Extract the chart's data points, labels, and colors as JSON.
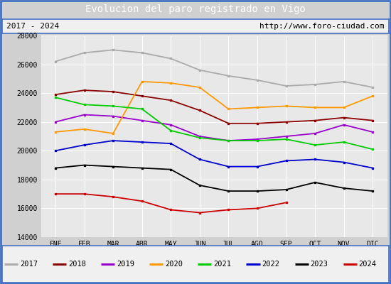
{
  "title": "Evolucion del paro registrado en Vigo",
  "subtitle_left": "2017 - 2024",
  "subtitle_right": "http://www.foro-ciudad.com",
  "months": [
    "ENE",
    "FEB",
    "MAR",
    "ABR",
    "MAY",
    "JUN",
    "JUL",
    "AGO",
    "SEP",
    "OCT",
    "NOV",
    "DIC"
  ],
  "ylim": [
    14000,
    28000
  ],
  "yticks": [
    14000,
    16000,
    18000,
    20000,
    22000,
    24000,
    26000,
    28000
  ],
  "series": {
    "2017": {
      "color": "#aaaaaa",
      "data": [
        26200,
        26800,
        27000,
        26800,
        26400,
        25600,
        25200,
        24900,
        24500,
        24600,
        24800,
        24400
      ]
    },
    "2018": {
      "color": "#8b0000",
      "data": [
        23900,
        24200,
        24100,
        23800,
        23500,
        22800,
        21900,
        21900,
        22000,
        22100,
        22300,
        22100
      ]
    },
    "2019": {
      "color": "#9900cc",
      "data": [
        22000,
        22500,
        22400,
        22100,
        21800,
        21000,
        20700,
        20800,
        21000,
        21200,
        21800,
        21300
      ]
    },
    "2020": {
      "color": "#ff9900",
      "data": [
        21300,
        21500,
        21200,
        24800,
        24700,
        24400,
        22900,
        23000,
        23100,
        23000,
        23000,
        23800
      ]
    },
    "2021": {
      "color": "#00cc00",
      "data": [
        23700,
        23200,
        23100,
        22900,
        21400,
        20900,
        20700,
        20700,
        20800,
        20400,
        20600,
        20100
      ]
    },
    "2022": {
      "color": "#0000cc",
      "data": [
        20000,
        20400,
        20700,
        20600,
        20500,
        19400,
        18900,
        18900,
        19300,
        19400,
        19200,
        18800
      ]
    },
    "2023": {
      "color": "#000000",
      "data": [
        18800,
        19000,
        18900,
        18800,
        18700,
        17600,
        17200,
        17200,
        17300,
        17800,
        17400,
        17200
      ]
    },
    "2024": {
      "color": "#cc0000",
      "data": [
        17000,
        17000,
        16800,
        16500,
        15900,
        15700,
        15900,
        16000,
        16400,
        null,
        null,
        null
      ]
    }
  },
  "title_bg_color": "#4472c4",
  "title_fg_color": "#ffffff",
  "plot_bg_color": "#e8e8e8",
  "grid_color": "#ffffff",
  "border_color": "#4472c4",
  "fig_bg_color": "#d0d0d0"
}
